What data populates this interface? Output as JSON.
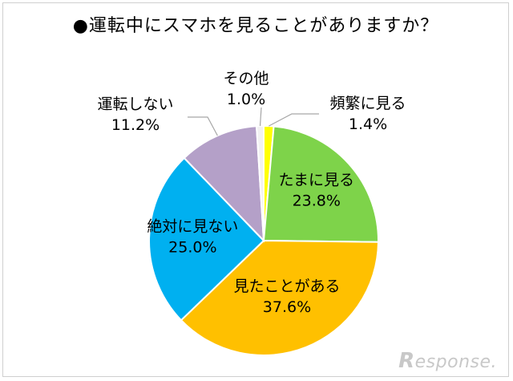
{
  "chart_data": {
    "type": "pie",
    "title": "●運転中にスマホを見ることがありますか？",
    "slices": [
      {
        "label": "頻繁に見る",
        "percent_text": "1.4%",
        "value": 1.4,
        "color": "#ffff00",
        "label_pos": "outside"
      },
      {
        "label": "たまに見る",
        "percent_text": "23.8%",
        "value": 23.8,
        "color": "#7ed34a",
        "label_pos": "inside"
      },
      {
        "label": "見たことがある",
        "percent_text": "37.6%",
        "value": 37.6,
        "color": "#ffc000",
        "label_pos": "inside"
      },
      {
        "label": "絶対に見ない",
        "percent_text": "25.0%",
        "value": 25.0,
        "color": "#00b0f0",
        "label_pos": "inside"
      },
      {
        "label": "運転しない",
        "percent_text": "11.2%",
        "value": 11.2,
        "color": "#b4a0c8",
        "label_pos": "outside"
      },
      {
        "label": "その他",
        "percent_text": "1.0%",
        "value": 1.0,
        "color": "#f2f2f2",
        "label_pos": "outside"
      }
    ]
  },
  "watermark": {
    "initial": "R",
    "rest": "esponse."
  }
}
